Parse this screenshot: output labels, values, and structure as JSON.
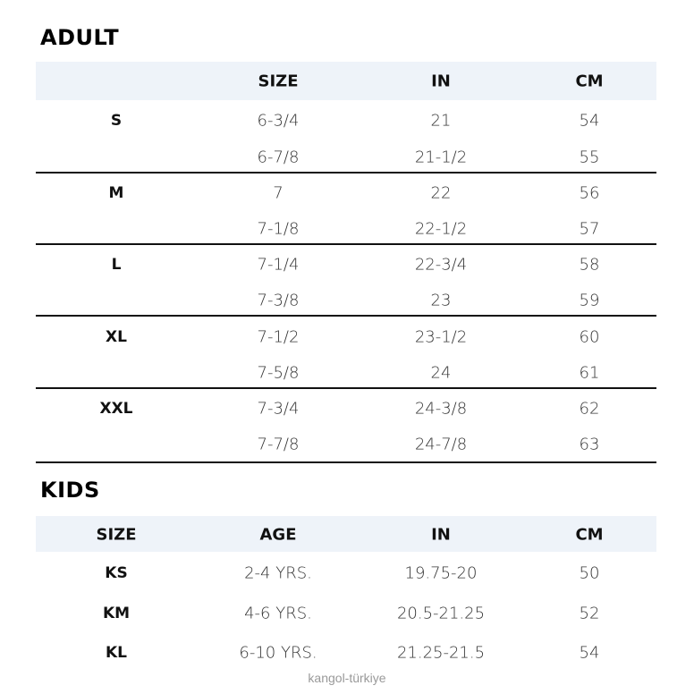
{
  "adult": {
    "title": "ADULT",
    "headers": [
      "",
      "SIZE",
      "IN",
      "CM"
    ],
    "groups": [
      {
        "label": "S",
        "rows": [
          [
            "6-3/4",
            "21",
            "54"
          ],
          [
            "6-7/8",
            "21-1/2",
            "55"
          ]
        ]
      },
      {
        "label": "M",
        "rows": [
          [
            "7",
            "22",
            "56"
          ],
          [
            "7-1/8",
            "22-1/2",
            "57"
          ]
        ]
      },
      {
        "label": "L",
        "rows": [
          [
            "7-1/4",
            "22-3/4",
            "58"
          ],
          [
            "7-3/8",
            "23",
            "59"
          ]
        ]
      },
      {
        "label": "XL",
        "rows": [
          [
            "7-1/2",
            "23-1/2",
            "60"
          ],
          [
            "7-5/8",
            "24",
            "61"
          ]
        ]
      },
      {
        "label": "XXL",
        "rows": [
          [
            "7-3/4",
            "24-3/8",
            "62"
          ],
          [
            "7-7/8",
            "24-7/8",
            "63"
          ]
        ]
      }
    ]
  },
  "kids": {
    "title": "KIDS",
    "headers": [
      "SIZE",
      "AGE",
      "IN",
      "CM"
    ],
    "rows": [
      [
        "KS",
        "2-4 YRS.",
        "19.75-20",
        "50"
      ],
      [
        "KM",
        "4-6 YRS.",
        "20.5-21.25",
        "52"
      ],
      [
        "KL",
        "6-10 YRS.",
        "21.25-21.5",
        "54"
      ]
    ]
  },
  "watermark": "kangol-türkiye",
  "colors": {
    "header_band": "#eef3f9",
    "rule": "#111111"
  }
}
